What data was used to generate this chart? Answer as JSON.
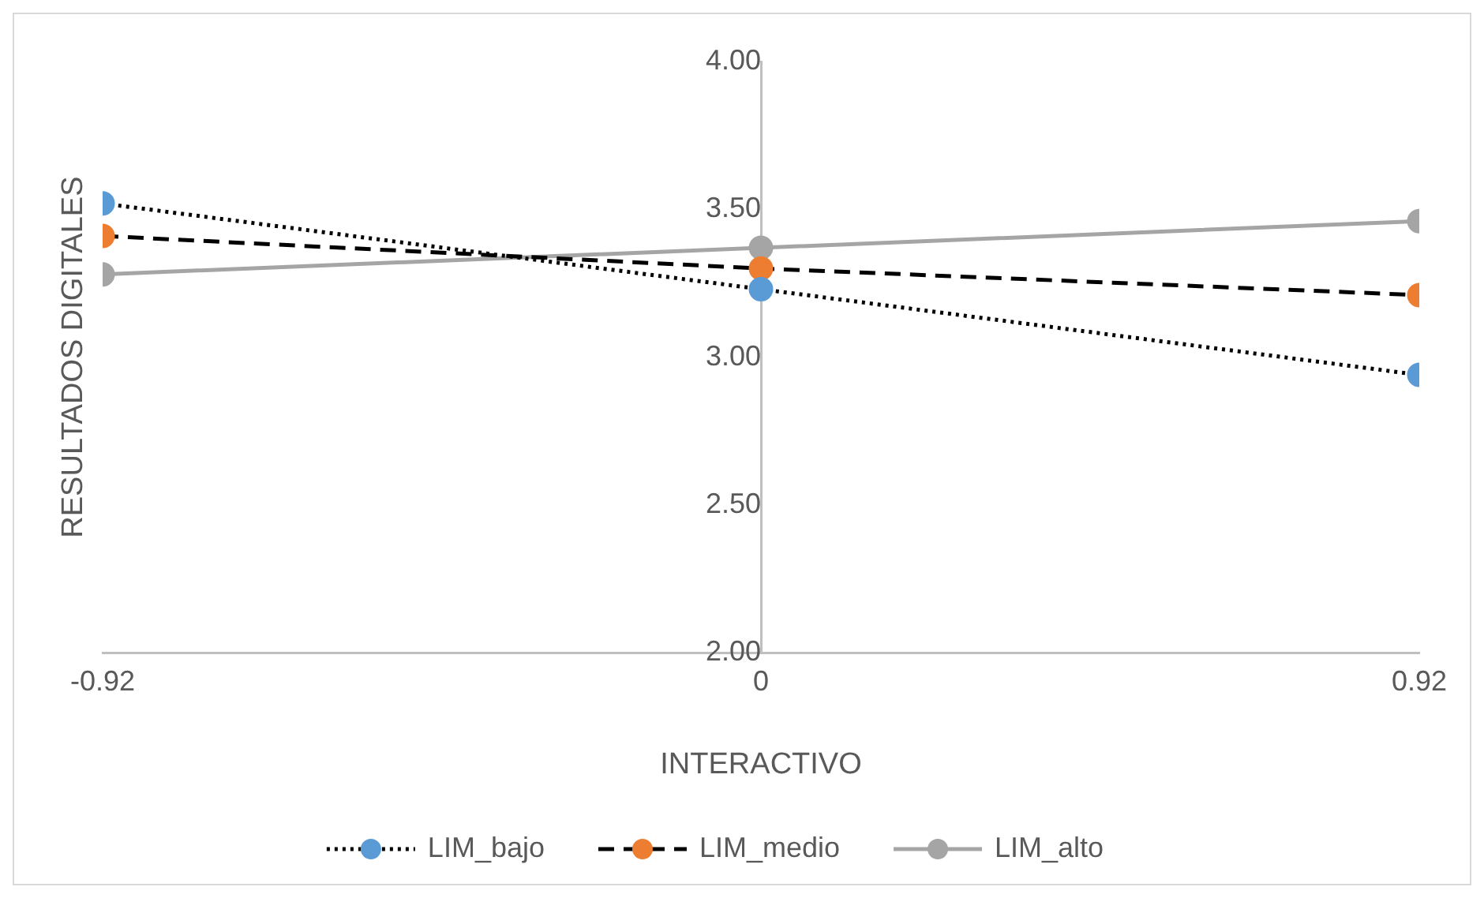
{
  "chart_data": {
    "type": "line",
    "xlabel": "INTERACTIVO",
    "ylabel": "RESULTADOS DIGITALES",
    "x": [
      -0.92,
      0,
      0.92
    ],
    "series": [
      {
        "name": "LIM_bajo",
        "color": "#5b9bd5",
        "line_style": "dotted",
        "values": [
          3.52,
          3.23,
          2.94
        ]
      },
      {
        "name": "LIM_medio",
        "color": "#ed7d31",
        "line_style": "dashed",
        "values": [
          3.41,
          3.3,
          3.21
        ]
      },
      {
        "name": "LIM_alto",
        "color": "#a5a5a5",
        "line_style": "solid",
        "values": [
          3.28,
          3.37,
          3.46
        ]
      }
    ],
    "xlim": [
      -0.92,
      0.92
    ],
    "xticks": [
      {
        "value": -0.92,
        "label": "-0.92"
      },
      {
        "value": 0,
        "label": "0"
      },
      {
        "value": 0.92,
        "label": "0.92"
      }
    ],
    "ylim": [
      2,
      4
    ],
    "yticks": [
      {
        "value": 2,
        "label": "2.00"
      },
      {
        "value": 2.5,
        "label": "2.50"
      },
      {
        "value": 3,
        "label": "3.00"
      },
      {
        "value": 3.5,
        "label": "3.50"
      },
      {
        "value": 4,
        "label": "4.00"
      }
    ],
    "grid": false,
    "legend": "bottom",
    "marker": "circle"
  }
}
